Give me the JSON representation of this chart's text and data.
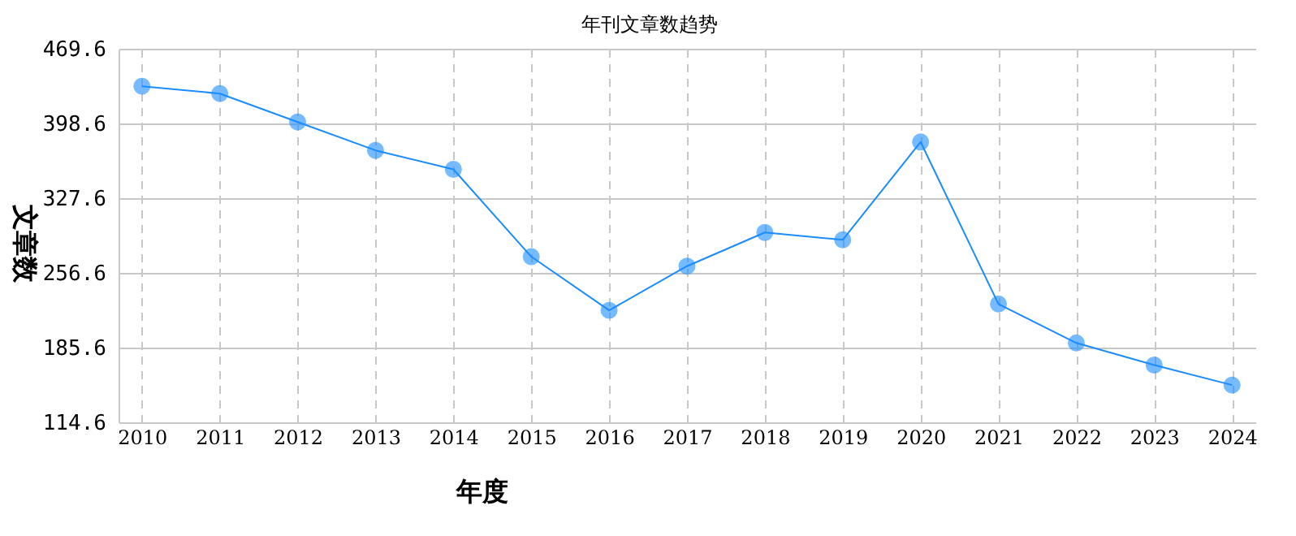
{
  "chart_data": {
    "type": "line",
    "title": "年刊文章数趋势",
    "xlabel": "年度",
    "ylabel": "文章数",
    "categories": [
      "2010",
      "2011",
      "2012",
      "2013",
      "2014",
      "2015",
      "2016",
      "2017",
      "2018",
      "2019",
      "2020",
      "2021",
      "2022",
      "2023",
      "2024"
    ],
    "series": [
      {
        "color": "#1a8cff",
        "values": [
          434,
          427,
          400,
          373,
          355,
          272,
          221,
          263,
          295,
          288,
          381,
          227,
          190,
          169,
          150
        ]
      }
    ],
    "ylim": [
      114.6,
      469.6
    ],
    "yticks": [
      114.6,
      185.6,
      256.6,
      327.6,
      398.6,
      469.6
    ],
    "grid": true,
    "marker": "circle",
    "line_style": "solid"
  }
}
